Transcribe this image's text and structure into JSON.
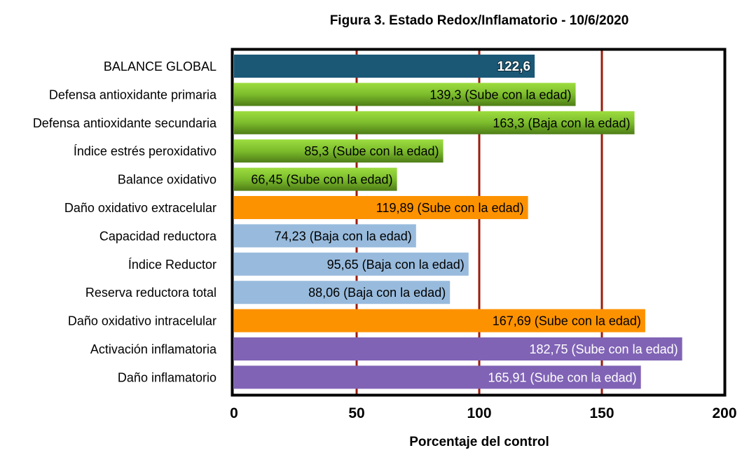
{
  "chart_data": {
    "type": "bar",
    "orientation": "horizontal",
    "title": "Figura 3. Estado Redox/Inflamatorio - 10/6/2020",
    "xlabel": "Porcentaje del control",
    "ylabel": "",
    "xlim": [
      0,
      200
    ],
    "xticks": [
      "0",
      "50",
      "100",
      "150",
      "200"
    ],
    "grid": "vertical lines at 50, 100, 150",
    "grid_color": "#9b1c0e",
    "categories": [
      "BALANCE GLOBAL",
      "Defensa antioxidante primaria",
      "Defensa antioxidante secundaria",
      "Índice estrés peroxidativo",
      "Balance oxidativo",
      "Daño oxidativo extracelular",
      "Capacidad reductora",
      "Índice Reductor",
      "Reserva reductora total",
      "Daño oxidativo intracelular",
      "Activación inflamatoria",
      "Daño inflamatorio"
    ],
    "values": [
      122.6,
      139.3,
      163.3,
      85.3,
      66.45,
      119.89,
      74.23,
      95.65,
      88.06,
      167.69,
      182.75,
      165.91
    ],
    "data_labels": [
      "122,6",
      "139,3 (Sube con la edad)",
      "163,3 (Baja con la edad)",
      "85,3 (Sube con la edad)",
      "66,45 (Sube con la edad)",
      "119,89 (Sube con la edad)",
      "74,23 (Baja con la edad)",
      "95,65 (Baja con la edad)",
      "88,06 (Baja con la edad)",
      "167,69 (Sube con la edad)",
      "182,75 (Sube con la edad)",
      "165,91 (Sube con la edad)"
    ],
    "bar_colors": [
      "#1a5876",
      "green",
      "green",
      "green",
      "green",
      "#fd9200",
      "#98bbdd",
      "#98bbdd",
      "#98bbdd",
      "#fd9200",
      "#8063b5",
      "#8063b5"
    ],
    "label_colors": [
      "#ffffff",
      "#000000",
      "#000000",
      "#000000",
      "#000000",
      "#000000",
      "#000000",
      "#000000",
      "#000000",
      "#000000",
      "#ffffff",
      "#ffffff"
    ]
  }
}
